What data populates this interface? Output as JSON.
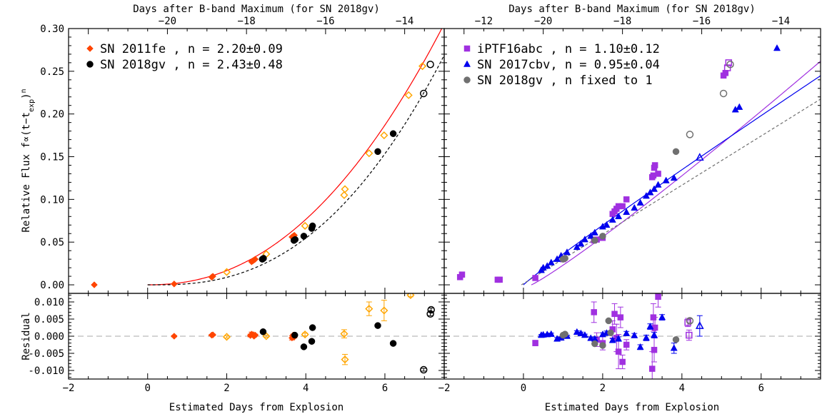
{
  "figure": {
    "top_axis_label": "Days after B-band Maximum (for SN 2018gv)",
    "bottom_axis_label": "Estimated Days from Explosion",
    "ylabel_main_prefix": "Relative Flux ",
    "ylabel_main_formula": "f∝(t−t",
    "ylabel_main_sub": "exp",
    "ylabel_main_close": ")",
    "ylabel_main_sup": "n",
    "ylabel_residual": "Residual"
  },
  "chart_data": [
    {
      "type": "scatter",
      "panel": "left-main",
      "xlim": [
        -2,
        7.5
      ],
      "ylim": [
        -0.01,
        0.3
      ],
      "xticks": [
        -2,
        0,
        2,
        4,
        6
      ],
      "yticks": [
        0.0,
        0.05,
        0.1,
        0.15,
        0.2,
        0.25,
        0.3
      ],
      "ytick_labels": [
        "0.00",
        "0.05",
        "0.10",
        "0.15",
        "0.20",
        "0.25",
        "0.30"
      ],
      "top_ticks": [
        -20,
        -18,
        -16,
        -14,
        -12
      ],
      "legend": [
        {
          "label": "SN 2011fe , n = 2.20±0.09",
          "color": "#ff4500",
          "marker": "diamond"
        },
        {
          "label": "SN 2018gv , n = 2.43±0.48",
          "color": "#000000",
          "marker": "circle"
        }
      ],
      "series": [
        {
          "name": "SN 2011fe",
          "color": "#ff4500",
          "marker": "diamond",
          "x": [
            -1.35,
            0.67,
            1.62,
            1.65,
            2.63,
            2.66,
            2.69,
            2.72,
            3.65,
            3.68,
            3.71
          ],
          "y": [
            0.0,
            0.001,
            0.009,
            0.01,
            0.027,
            0.028,
            0.029,
            0.03,
            0.056,
            0.057,
            0.058
          ]
        },
        {
          "name": "SN 2011fe",
          "color": "#ffa500",
          "marker": "open-diamond",
          "x": [
            2.0,
            3.0,
            3.98,
            4.97,
            4.99,
            5.6,
            5.98,
            6.6,
            6.95
          ],
          "y": [
            0.015,
            0.036,
            0.069,
            0.105,
            0.112,
            0.154,
            0.175,
            0.222,
            0.256
          ]
        },
        {
          "name": "SN 2018gv",
          "color": "#000000",
          "marker": "circle",
          "x": [
            2.9,
            2.93,
            3.7,
            3.73,
            3.95,
            4.15,
            4.17,
            5.82,
            6.21
          ],
          "y": [
            0.03,
            0.031,
            0.052,
            0.053,
            0.057,
            0.066,
            0.069,
            0.156,
            0.177
          ]
        },
        {
          "name": "SN 2018gv",
          "color": "#000000",
          "marker": "open-circle",
          "x": [
            6.98,
            7.15
          ],
          "y": [
            0.224,
            0.258
          ]
        }
      ],
      "fits": [
        {
          "color": "#ff0000",
          "dash": "solid",
          "t0": 0,
          "amp": 0.00363,
          "n": 2.2,
          "x_range": [
            0,
            7.5
          ]
        },
        {
          "color": "#000000",
          "dash": "dashed",
          "t0": 0.22,
          "amp": 0.00216,
          "n": 2.43,
          "x_range": [
            0,
            7.5
          ]
        }
      ]
    },
    {
      "type": "scatter",
      "panel": "right-main",
      "xlim": [
        -2,
        7.5
      ],
      "ylim": [
        -0.01,
        0.3
      ],
      "xticks": [
        -2,
        0,
        2,
        4,
        6
      ],
      "top_ticks": [
        -20,
        -18,
        -16,
        -14,
        -12
      ],
      "legend": [
        {
          "label": "iPTF16abc  , n = 1.10±0.12",
          "color": "#a030e0",
          "marker": "square"
        },
        {
          "label": "SN 2017cbv, n = 0.95±0.04",
          "color": "#0000ee",
          "marker": "triangle"
        },
        {
          "label": "SN 2018gv , n fixed to 1",
          "color": "#707070",
          "marker": "circle"
        }
      ],
      "series": [
        {
          "name": "iPTF16abc",
          "color": "#a030e0",
          "marker": "square",
          "x": [
            -1.6,
            -1.55,
            -0.65,
            -0.6,
            0.3,
            1.0,
            1.78,
            1.85,
            2.0,
            2.25,
            2.3,
            2.35,
            2.4,
            2.5,
            2.6,
            3.25,
            3.28,
            3.3,
            3.32,
            3.4,
            5.05,
            5.1
          ],
          "y": [
            0.009,
            0.012,
            0.006,
            0.006,
            0.008,
            0.03,
            0.052,
            0.053,
            0.055,
            0.083,
            0.086,
            0.089,
            0.092,
            0.092,
            0.1,
            0.126,
            0.128,
            0.137,
            0.14,
            0.13,
            0.245,
            0.248
          ]
        },
        {
          "name": "iPTF16abc",
          "color": "#a030e0",
          "marker": "open-square",
          "x": [
            5.15,
            5.18
          ],
          "y": [
            0.254,
            0.26
          ]
        },
        {
          "name": "SN 2017cbv",
          "color": "#0000ee",
          "marker": "triangle",
          "x": [
            0.45,
            0.5,
            0.6,
            0.7,
            0.85,
            0.95,
            1.1,
            1.35,
            1.45,
            1.55,
            1.7,
            1.8,
            2.0,
            2.1,
            2.25,
            2.4,
            2.6,
            2.8,
            2.95,
            3.1,
            3.2,
            3.3,
            3.4,
            3.6,
            3.8,
            5.35,
            5.45,
            6.4
          ],
          "y": [
            0.017,
            0.02,
            0.022,
            0.026,
            0.03,
            0.034,
            0.038,
            0.044,
            0.048,
            0.053,
            0.057,
            0.061,
            0.068,
            0.07,
            0.076,
            0.08,
            0.085,
            0.09,
            0.096,
            0.104,
            0.108,
            0.112,
            0.117,
            0.122,
            0.125,
            0.205,
            0.208,
            0.277
          ]
        },
        {
          "name": "SN 2017cbv",
          "color": "#0000ee",
          "marker": "open-triangle",
          "x": [
            4.45
          ],
          "y": [
            0.149
          ]
        },
        {
          "name": "SN 2018gv",
          "color": "#707070",
          "marker": "circle",
          "x": [
            1.0,
            1.05,
            1.8,
            2.0,
            3.85
          ],
          "y": [
            0.03,
            0.031,
            0.052,
            0.057,
            0.156
          ]
        },
        {
          "name": "SN 2018gv",
          "color": "#707070",
          "marker": "open-circle",
          "x": [
            4.2,
            5.05,
            5.22
          ],
          "y": [
            0.176,
            0.224,
            0.258
          ]
        }
      ],
      "fits": [
        {
          "color": "#a030e0",
          "dash": "solid",
          "t0": 0.2,
          "amp": 0.0294,
          "n": 1.1,
          "x_range": [
            0.2,
            7.5
          ]
        },
        {
          "color": "#0000ee",
          "dash": "solid",
          "t0": 0.0,
          "amp": 0.0361,
          "n": 0.95,
          "x_range": [
            0.0,
            7.5
          ]
        },
        {
          "color": "#707070",
          "dash": "dashed",
          "t0": -0.05,
          "amp": 0.0288,
          "n": 1.0,
          "x_range": [
            -0.05,
            7.5
          ]
        }
      ]
    },
    {
      "type": "scatter",
      "panel": "left-residual",
      "xlim": [
        -2,
        7.5
      ],
      "ylim": [
        -0.0125,
        0.0125
      ],
      "yticks": [
        -0.01,
        -0.005,
        0.0,
        0.005,
        0.01
      ],
      "ytick_labels": [
        "-0.010",
        "-0.005",
        "0.000",
        "0.005",
        "0.010"
      ],
      "series": [
        {
          "name": "SN 2011fe",
          "color": "#ff4500",
          "marker": "diamond",
          "x": [
            0.67,
            1.62,
            1.65,
            2.6,
            2.63,
            2.66,
            2.69,
            2.72,
            3.65,
            3.68,
            3.71
          ],
          "y": [
            0.0,
            0.0003,
            0.0004,
            0.0002,
            0.0006,
            0.0004,
            0.0,
            0.0003,
            -0.0005,
            0.0003,
            -0.0002
          ],
          "err": [
            0.0002,
            0.0002,
            0.0002,
            0.0004,
            0.0006,
            0.0004,
            0.0003,
            0.0003,
            0.0006,
            0.0003,
            0.0003
          ]
        },
        {
          "name": "SN 2011fe",
          "color": "#ffa500",
          "marker": "open-diamond",
          "x": [
            2.0,
            3.0,
            3.98,
            4.97,
            4.99,
            5.6,
            5.98,
            6.65
          ],
          "y": [
            -0.0002,
            0.0,
            0.0005,
            0.0007,
            -0.0068,
            0.008,
            0.0075,
            0.012
          ],
          "err": [
            0.0003,
            0.0003,
            0.0004,
            0.0012,
            0.0015,
            0.002,
            0.003,
            0.0005
          ]
        },
        {
          "name": "SN 2018gv",
          "color": "#000000",
          "marker": "circle",
          "x": [
            2.92,
            3.72,
            3.95,
            4.15,
            4.17,
            5.82,
            6.21
          ],
          "y": [
            0.0013,
            0.0003,
            -0.0031,
            -0.0015,
            0.0025,
            0.0031,
            -0.0021
          ],
          "err": [
            0.0003,
            0.0003,
            0.0003,
            0.0003,
            0.0003,
            0.0004,
            0.0004
          ]
        },
        {
          "name": "SN 2018gv",
          "color": "#000000",
          "marker": "open-circle",
          "x": [
            6.98,
            7.15,
            7.17
          ],
          "y": [
            -0.0098,
            0.0065,
            0.0077
          ],
          "err": [
            0.0004,
            0.0005,
            0.0005
          ]
        }
      ]
    },
    {
      "type": "scatter",
      "panel": "right-residual",
      "xlim": [
        -2,
        7.5
      ],
      "ylim": [
        -0.0125,
        0.0125
      ],
      "series": [
        {
          "name": "iPTF16abc",
          "color": "#a030e0",
          "marker": "square",
          "x": [
            0.3,
            1.78,
            1.85,
            2.0,
            2.25,
            2.3,
            2.35,
            2.4,
            2.45,
            2.5,
            2.6,
            3.25,
            3.28,
            3.3,
            3.32,
            3.4
          ],
          "y": [
            -0.002,
            0.007,
            -0.001,
            -0.002,
            0.002,
            0.0065,
            -0.0005,
            -0.0045,
            0.0055,
            -0.0075,
            -0.0025,
            -0.0095,
            0.0055,
            -0.004,
            0.0025,
            0.0115
          ],
          "err": [
            0.0008,
            0.003,
            0.002,
            0.002,
            0.0025,
            0.003,
            0.004,
            0.005,
            0.003,
            0.002,
            0.0015,
            0.005,
            0.004,
            0.0035,
            0.003,
            0.003
          ]
        },
        {
          "name": "iPTF16abc",
          "color": "#a030e0",
          "marker": "open-square",
          "x": [
            4.15,
            4.18
          ],
          "y": [
            0.004,
            0.0003
          ],
          "err": [
            0.0012,
            0.0015
          ]
        },
        {
          "name": "SN 2017cbv",
          "color": "#0000ee",
          "marker": "triangle",
          "x": [
            0.45,
            0.5,
            0.6,
            0.7,
            0.85,
            0.95,
            1.1,
            1.35,
            1.45,
            1.55,
            1.7,
            1.8,
            2.0,
            2.1,
            2.25,
            2.4,
            2.6,
            2.8,
            2.95,
            3.1,
            3.2,
            3.3,
            3.5,
            3.8
          ],
          "y": [
            0.0003,
            0.0004,
            0.0005,
            0.0006,
            -0.0008,
            -0.0005,
            0.0,
            0.0012,
            0.0008,
            0.0003,
            -0.0006,
            -0.0008,
            0.0005,
            0.0009,
            -0.0012,
            -0.0008,
            0.0008,
            0.0002,
            -0.0032,
            -0.0005,
            0.0028,
            0.0003,
            0.0055,
            -0.0035
          ],
          "err": [
            0.0002,
            0.0002,
            0.0002,
            0.0003,
            0.0004,
            0.0003,
            0.0003,
            0.0004,
            0.0004,
            0.0003,
            0.0004,
            0.0005,
            0.0005,
            0.0006,
            0.0005,
            0.0006,
            0.0006,
            0.0006,
            0.0007,
            0.0008,
            0.0008,
            0.0008,
            0.0008,
            0.0015
          ]
        },
        {
          "name": "SN 2017cbv",
          "color": "#0000ee",
          "marker": "open-triangle",
          "x": [
            4.45
          ],
          "y": [
            0.003
          ],
          "err": [
            0.003
          ]
        },
        {
          "name": "SN 2018gv",
          "color": "#707070",
          "marker": "circle",
          "x": [
            1.0,
            1.05,
            1.8,
            2.0,
            2.15,
            2.2,
            3.85
          ],
          "y": [
            0.0003,
            0.0006,
            -0.0022,
            -0.0027,
            0.0045,
            0.001,
            -0.001
          ],
          "err": [
            0.0002,
            0.0002,
            0.0003,
            0.0003,
            0.0004,
            0.0003,
            0.0005
          ]
        },
        {
          "name": "SN 2018gv",
          "color": "#707070",
          "marker": "open-circle",
          "x": [
            4.2
          ],
          "y": [
            0.0045
          ],
          "err": [
            0.0006
          ]
        }
      ]
    }
  ]
}
